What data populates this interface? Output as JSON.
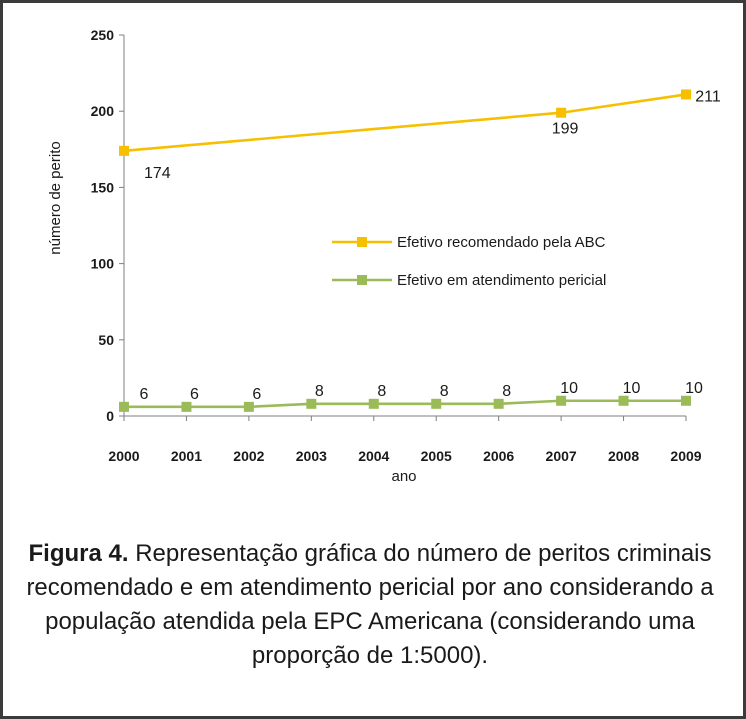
{
  "chart_data": {
    "type": "line",
    "title": "",
    "xlabel": "ano",
    "ylabel": "número de perito",
    "ylim": [
      0,
      250
    ],
    "yticks": [
      0,
      50,
      100,
      150,
      200,
      250
    ],
    "categories": [
      "2000",
      "2001",
      "2002",
      "2003",
      "2004",
      "2005",
      "2006",
      "2007",
      "2008",
      "2009"
    ],
    "legend_position": "center-right",
    "series": [
      {
        "name": "Efetivo recomendado pela ABC",
        "color": "#f6c000",
        "points": [
          {
            "x": "2000",
            "y": 174,
            "label": "174"
          },
          {
            "x": "2007",
            "y": 199,
            "label": "199"
          },
          {
            "x": "2009",
            "y": 211,
            "label": "211"
          }
        ]
      },
      {
        "name": "Efetivo em atendimento pericial",
        "color": "#9bbb59",
        "points": [
          {
            "x": "2000",
            "y": 6,
            "label": "6"
          },
          {
            "x": "2001",
            "y": 6,
            "label": "6"
          },
          {
            "x": "2002",
            "y": 6,
            "label": "6"
          },
          {
            "x": "2003",
            "y": 8,
            "label": "8"
          },
          {
            "x": "2004",
            "y": 8,
            "label": "8"
          },
          {
            "x": "2005",
            "y": 8,
            "label": "8"
          },
          {
            "x": "2006",
            "y": 8,
            "label": "8"
          },
          {
            "x": "2007",
            "y": 10,
            "label": "10"
          },
          {
            "x": "2008",
            "y": 10,
            "label": "10"
          },
          {
            "x": "2009",
            "y": 10,
            "label": "10"
          }
        ]
      }
    ]
  },
  "caption": {
    "lead": "Figura 4.",
    "text": " Representação gráfica do número de peritos criminais recomendado e em atendimento pericial por ano considerando a população atendida pela EPC Americana (considerando uma proporção de 1:5000)."
  }
}
